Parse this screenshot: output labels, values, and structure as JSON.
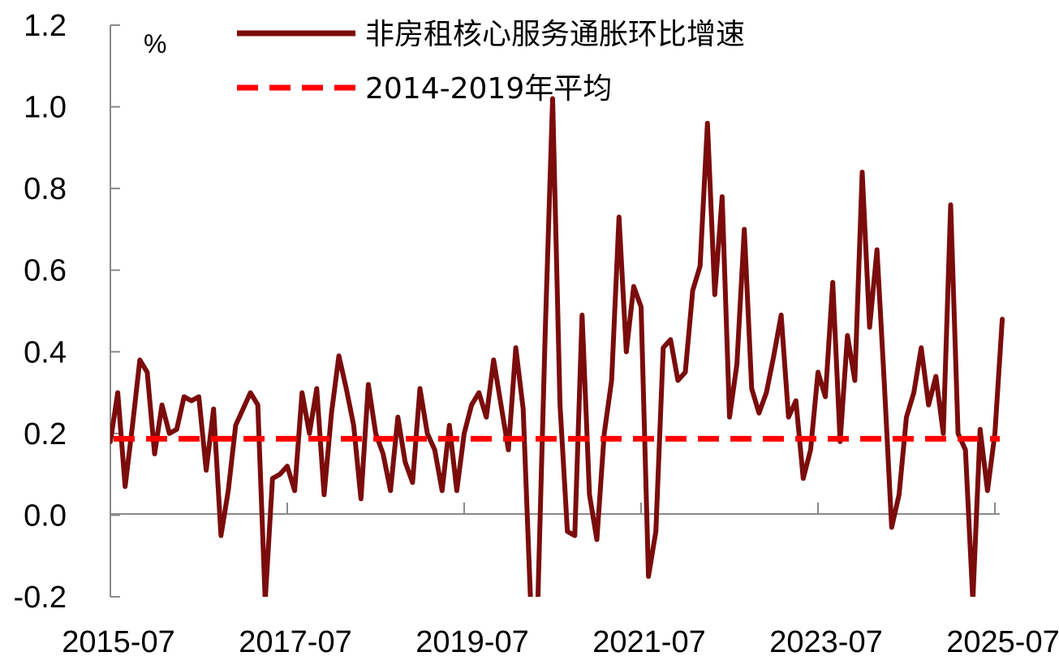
{
  "chart_data": {
    "type": "line",
    "unit_label": "%",
    "ylim": [
      -0.2,
      1.2
    ],
    "y_ticks": [
      "-0.2",
      "0.0",
      "0.2",
      "0.4",
      "0.6",
      "0.8",
      "1.0",
      "1.2"
    ],
    "x_ticks": [
      "2015-07",
      "2017-07",
      "2019-07",
      "2021-07",
      "2023-07",
      "2025-07"
    ],
    "x_start": "2015-07",
    "x_end": "2025-07",
    "grid": false,
    "legend_position": "top",
    "series": [
      {
        "name": "非房租核心服务通胀环比增速",
        "color": "#7b0c0c",
        "style": "solid",
        "x": [
          "2015-07",
          "2015-08",
          "2015-09",
          "2015-10",
          "2015-11",
          "2015-12",
          "2016-01",
          "2016-02",
          "2016-03",
          "2016-04",
          "2016-05",
          "2016-06",
          "2016-07",
          "2016-08",
          "2016-09",
          "2016-10",
          "2016-11",
          "2016-12",
          "2017-01",
          "2017-02",
          "2017-03",
          "2017-04",
          "2017-05",
          "2017-06",
          "2017-07",
          "2017-08",
          "2017-09",
          "2017-10",
          "2017-11",
          "2017-12",
          "2018-01",
          "2018-02",
          "2018-03",
          "2018-04",
          "2018-05",
          "2018-06",
          "2018-07",
          "2018-08",
          "2018-09",
          "2018-10",
          "2018-11",
          "2018-12",
          "2019-01",
          "2019-02",
          "2019-03",
          "2019-04",
          "2019-05",
          "2019-06",
          "2019-07",
          "2019-08",
          "2019-09",
          "2019-10",
          "2019-11",
          "2019-12",
          "2020-01",
          "2020-02",
          "2020-03",
          "2020-04",
          "2020-05",
          "2020-06",
          "2020-07",
          "2020-08",
          "2020-09",
          "2020-10",
          "2020-11",
          "2020-12",
          "2021-01",
          "2021-02",
          "2021-03",
          "2021-04",
          "2021-05",
          "2021-06",
          "2021-07",
          "2021-08",
          "2021-09",
          "2021-10",
          "2021-11",
          "2021-12",
          "2022-01",
          "2022-02",
          "2022-03",
          "2022-04",
          "2022-05",
          "2022-06",
          "2022-07",
          "2022-08",
          "2022-09",
          "2022-10",
          "2022-11",
          "2022-12",
          "2023-01",
          "2023-02",
          "2023-03",
          "2023-04",
          "2023-05",
          "2023-06",
          "2023-07",
          "2023-08",
          "2023-09",
          "2023-10",
          "2023-11",
          "2023-12",
          "2024-01",
          "2024-02",
          "2024-03",
          "2024-04",
          "2024-05",
          "2024-06",
          "2024-07",
          "2024-08",
          "2024-09",
          "2024-10",
          "2024-11",
          "2024-12",
          "2025-01",
          "2025-02",
          "2025-03",
          "2025-04",
          "2025-05",
          "2025-06",
          "2025-07",
          "2025-08"
        ],
        "values": [
          0.18,
          0.3,
          0.07,
          0.22,
          0.38,
          0.35,
          0.15,
          0.27,
          0.2,
          0.21,
          0.29,
          0.28,
          0.29,
          0.11,
          0.26,
          -0.05,
          0.06,
          0.22,
          0.26,
          0.3,
          0.27,
          -0.21,
          0.09,
          0.1,
          0.12,
          0.06,
          0.3,
          0.2,
          0.31,
          0.05,
          0.25,
          0.39,
          0.31,
          0.22,
          0.04,
          0.32,
          0.2,
          0.15,
          0.06,
          0.24,
          0.13,
          0.08,
          0.31,
          0.2,
          0.16,
          0.06,
          0.22,
          0.06,
          0.2,
          0.27,
          0.3,
          0.24,
          0.38,
          0.27,
          0.16,
          0.41,
          0.26,
          -0.21,
          -0.21,
          0.45,
          1.02,
          0.27,
          -0.04,
          -0.05,
          0.49,
          0.05,
          -0.06,
          0.2,
          0.33,
          0.73,
          0.4,
          0.56,
          0.51,
          -0.15,
          -0.04,
          0.41,
          0.43,
          0.33,
          0.35,
          0.55,
          0.61,
          0.96,
          0.54,
          0.78,
          0.24,
          0.37,
          0.7,
          0.31,
          0.25,
          0.3,
          0.39,
          0.49,
          0.24,
          0.28,
          0.09,
          0.16,
          0.35,
          0.29,
          0.57,
          0.18,
          0.44,
          0.33,
          0.84,
          0.46,
          0.65,
          0.32,
          -0.03,
          0.05,
          0.24,
          0.3,
          0.41,
          0.27,
          0.34,
          0.2,
          0.76,
          0.2,
          0.16,
          -0.21,
          0.21,
          0.06,
          0.2,
          0.48
        ]
      },
      {
        "name": "2014-2019年平均",
        "color": "#ff0000",
        "style": "dashed",
        "value": 0.187
      }
    ]
  }
}
